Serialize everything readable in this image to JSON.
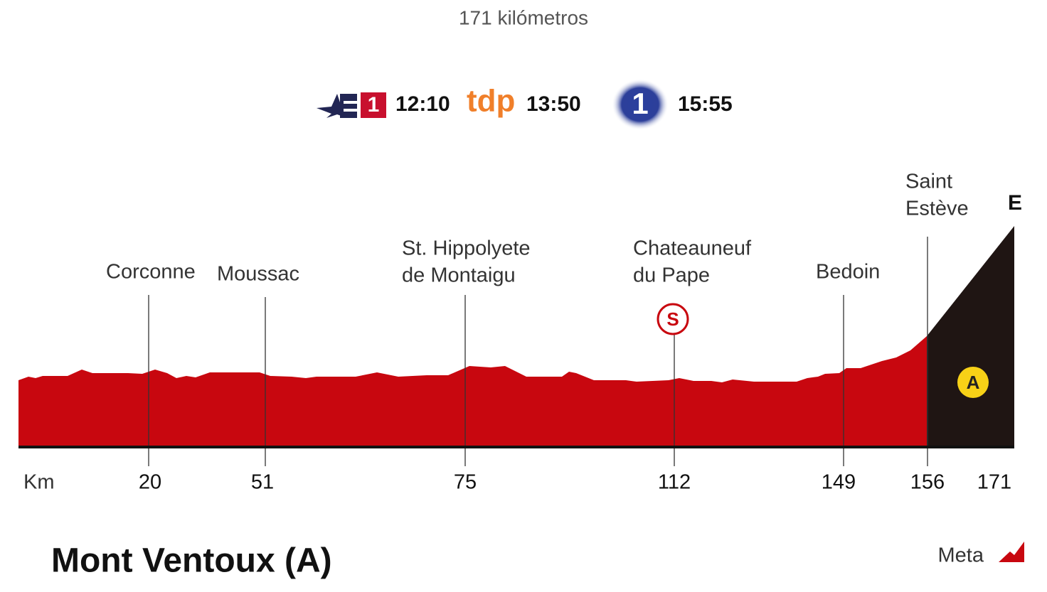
{
  "subtitle": "171 kilómetros",
  "broadcasts": [
    {
      "channel": "1",
      "time": "12:10"
    },
    {
      "channel": "tdp",
      "time": "13:50"
    },
    {
      "channel": "1",
      "time": "15:55"
    }
  ],
  "km_label": "Km",
  "waypoints": [
    {
      "name": [
        "Corconne"
      ],
      "km": "20"
    },
    {
      "name": [
        "Moussac"
      ],
      "km": "51"
    },
    {
      "name": [
        "St. Hippolyete",
        "de Montaigu"
      ],
      "km": "75"
    },
    {
      "name": [
        "Chateauneuf",
        "du Pape"
      ],
      "km": "112"
    },
    {
      "name": [
        "Bedoin"
      ],
      "km": "149"
    },
    {
      "name": [
        "Saint",
        "Estève"
      ],
      "km": "156"
    }
  ],
  "finish": {
    "marker": "E",
    "km": "171"
  },
  "sprint_marker": "S",
  "climb_marker": "A",
  "title": "Mont Ventoux (A)",
  "legend": "Meta"
}
